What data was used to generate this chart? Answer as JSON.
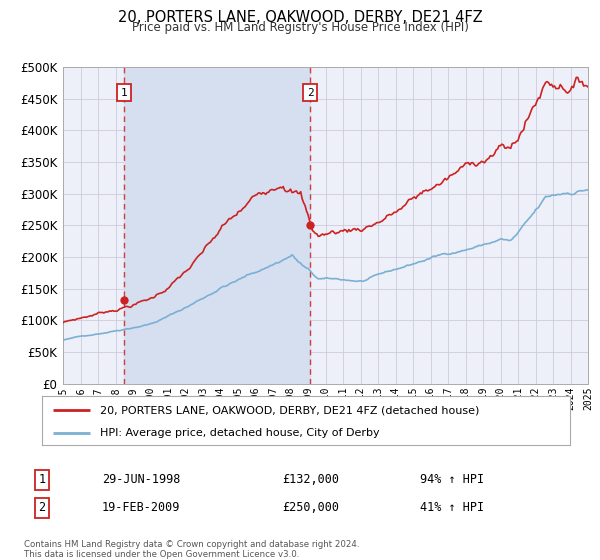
{
  "title": "20, PORTERS LANE, OAKWOOD, DERBY, DE21 4FZ",
  "subtitle": "Price paid vs. HM Land Registry's House Price Index (HPI)",
  "legend_line1": "20, PORTERS LANE, OAKWOOD, DERBY, DE21 4FZ (detached house)",
  "legend_line2": "HPI: Average price, detached house, City of Derby",
  "marker1_date": 1998.49,
  "marker1_value": 132000,
  "marker1_label": "1",
  "marker1_text_date": "29-JUN-1998",
  "marker1_text_price": "£132,000",
  "marker1_text_hpi": "94% ↑ HPI",
  "marker2_date": 2009.12,
  "marker2_value": 250000,
  "marker2_label": "2",
  "marker2_text_date": "19-FEB-2009",
  "marker2_text_price": "£250,000",
  "marker2_text_hpi": "41% ↑ HPI",
  "xmin": 1995.0,
  "xmax": 2025.0,
  "ymin": 0,
  "ymax": 500000,
  "yticks": [
    0,
    50000,
    100000,
    150000,
    200000,
    250000,
    300000,
    350000,
    400000,
    450000,
    500000
  ],
  "ytick_labels": [
    "£0",
    "£50K",
    "£100K",
    "£150K",
    "£200K",
    "£250K",
    "£300K",
    "£350K",
    "£400K",
    "£450K",
    "£500K"
  ],
  "grid_color": "#ccccdd",
  "background_color": "#ffffff",
  "plot_bg_color": "#edf0f8",
  "hpi_line_color": "#7bafd4",
  "price_line_color": "#cc2222",
  "vline_color": "#cc2222",
  "marker_color": "#cc2222",
  "span_color": "#d5dff0",
  "footnote": "Contains HM Land Registry data © Crown copyright and database right 2024.\nThis data is licensed under the Open Government Licence v3.0."
}
